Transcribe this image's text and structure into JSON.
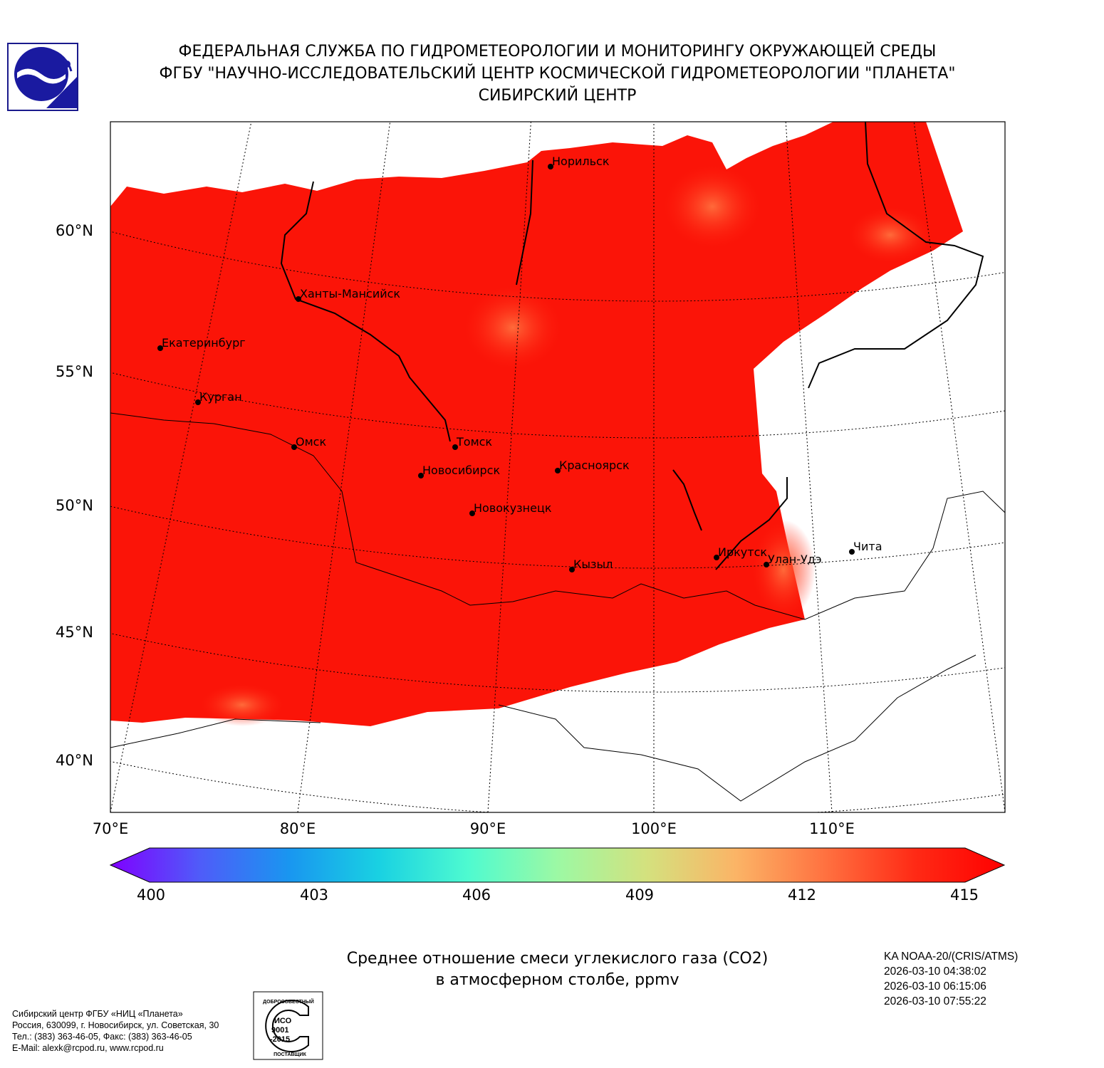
{
  "header": {
    "line1": "ФЕДЕРАЛЬНАЯ СЛУЖБА ПО ГИДРОМЕТЕОРОЛОГИИ И МОНИТОРИНГУ ОКРУЖАЮЩЕЙ СРЕДЫ",
    "line2": "ФГБУ \"НАУЧНО-ИССЛЕДОВАТЕЛЬСКИЙ ЦЕНТР КОСМИЧЕСКОЙ ГИДРОМЕТЕОРОЛОГИИ \"ПЛАНЕТА\"",
    "line3": "СИБИРСКИЙ ЦЕНТР"
  },
  "map": {
    "lat_labels": [
      "60°N",
      "55°N",
      "50°N",
      "45°N",
      "40°N"
    ],
    "lon_labels": [
      "70°E",
      "80°E",
      "90°E",
      "100°E",
      "110°E"
    ],
    "cities": [
      "Норильск",
      "Ханты-Мансийск",
      "Екатеринбург",
      "Курган",
      "Омск",
      "Томск",
      "Новосибирск",
      "Красноярск",
      "Новокузнецк",
      "Кызыл",
      "Иркутск",
      "Улан-Удэ",
      "Чита"
    ]
  },
  "colorbar": {
    "ticks": [
      "400",
      "403",
      "406",
      "409",
      "412",
      "415"
    ],
    "min": 400,
    "max": 415,
    "colors": [
      "#8000ff",
      "#4f5cf9",
      "#1996f0",
      "#19d1e2",
      "#4efad0",
      "#9cf9a4",
      "#d4e17e",
      "#fbb466",
      "#ff7140",
      "#ff2a15",
      "#ff0000"
    ]
  },
  "title": {
    "line1": "Среднее отношение смеси углекислого газа (CO2)",
    "line2": "в атмосферном столбе, ppmv"
  },
  "satellite": {
    "name": "KA NOAA-20/(CRIS/ATMS)",
    "times": [
      "2026-03-10 04:38:02",
      "2026-03-10 06:15:06",
      "2026-03-10 07:55:22"
    ]
  },
  "footer": {
    "lines": [
      "Сибирский центр ФГБУ «НИЦ «Планета»",
      "Россия, 630099, г. Новосибирск, ул. Советская, 30",
      "Тел.: (383) 363-46-05, Факс: (383) 363-46-05",
      "E-Mail: alexk@rcpod.ru, www.rcpod.ru"
    ],
    "iso_badge": [
      "ДОБРОСОВЕСТНЫЙ",
      "ИСО",
      "9001",
      "-2015",
      "ПОСТАВЩИК"
    ]
  }
}
